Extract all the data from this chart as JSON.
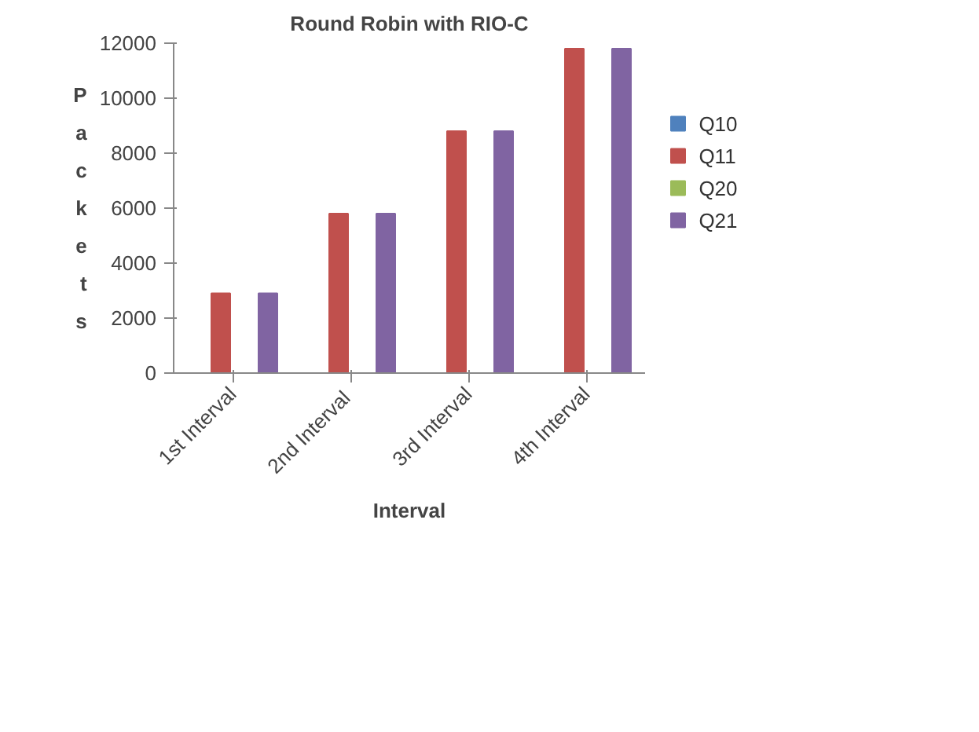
{
  "chart_data": {
    "type": "bar",
    "title": "Round Robin with RIO-C",
    "xlabel": "Interval",
    "ylabel": "Packets",
    "categories": [
      "1st Interval",
      "2nd  Interval",
      "3rd Interval",
      "4th Interval"
    ],
    "series": [
      {
        "name": "Q10",
        "color": "#4f81bd",
        "values": [
          0,
          0,
          0,
          0
        ]
      },
      {
        "name": "Q11",
        "color": "#c0504d",
        "values": [
          2900,
          5800,
          8800,
          11800
        ]
      },
      {
        "name": "Q20",
        "color": "#9bbb59",
        "values": [
          0,
          0,
          0,
          0
        ]
      },
      {
        "name": "Q21",
        "color": "#8064a2",
        "values": [
          2900,
          5800,
          8800,
          11800
        ]
      }
    ],
    "ylim": [
      0,
      12000
    ],
    "yticks": [
      0,
      2000,
      4000,
      6000,
      8000,
      10000,
      12000
    ],
    "grid": false,
    "legend": "right"
  }
}
